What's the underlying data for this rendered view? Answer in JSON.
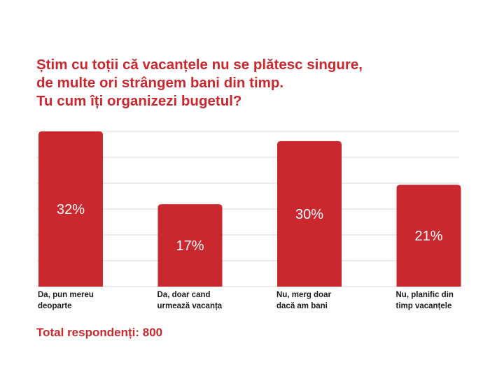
{
  "title_lines": [
    "Știm cu toții că vacanțele nu se plătesc singure,",
    "de multe ori strângem bani din timp.",
    "Tu cum îți organizezi bugetul?"
  ],
  "footer": "Total respondenți: 800",
  "colors": {
    "bar": "#c8282e",
    "title": "#c8282e",
    "grid": "#d9d9d9",
    "bar_label": "#ffffff"
  },
  "chart_data": {
    "type": "bar",
    "title": "",
    "xlabel": "",
    "ylabel": "",
    "categories": [
      [
        "Da, pun mereu",
        "deoparte"
      ],
      [
        "Da, doar cand",
        "urmează vacanța"
      ],
      [
        "Nu, merg doar",
        "dacă am bani"
      ],
      [
        "Nu, planific din",
        "timp vacanțele"
      ]
    ],
    "values": [
      32,
      17,
      30,
      21
    ],
    "value_labels": [
      "32%",
      "17%",
      "30%",
      "21%"
    ],
    "ylim": [
      0,
      32
    ],
    "grid": true
  }
}
